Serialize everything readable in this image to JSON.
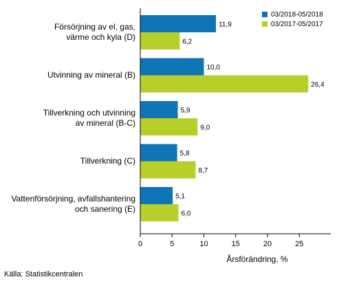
{
  "chart_data": {
    "type": "bar",
    "orientation": "horizontal",
    "categories": [
      [
        "Försörjning av el, gas,",
        "värme och kyla (D)"
      ],
      [
        "Utvinning av mineral (B)"
      ],
      [
        "Tillverkning och utvinning",
        "av mineral (B-C)"
      ],
      [
        "Tillverkning (C)"
      ],
      [
        "Vattenförsörjning, avfallshantering",
        "och sanering (E)"
      ]
    ],
    "series": [
      {
        "name": "03/2018-05/2018",
        "color": "#0f75b7",
        "values": [
          11.9,
          10.0,
          5.9,
          5.8,
          5.1
        ],
        "labels": [
          "11,9",
          "10,0",
          "5,9",
          "5,8",
          "5,1"
        ]
      },
      {
        "name": "03/2017-05/2017",
        "color": "#b7cf28",
        "values": [
          6.2,
          26.4,
          9.0,
          8.7,
          6.0
        ],
        "labels": [
          "6,2",
          "26,4",
          "9,0",
          "8,7",
          "6,0"
        ]
      }
    ],
    "xlabel": "Årsförändring, %",
    "xlim": [
      0,
      30
    ],
    "xticks": [
      0,
      5,
      10,
      15,
      20,
      25
    ],
    "grid": false,
    "legend": "top-right"
  },
  "source": "Källa: Statistikcentralen"
}
